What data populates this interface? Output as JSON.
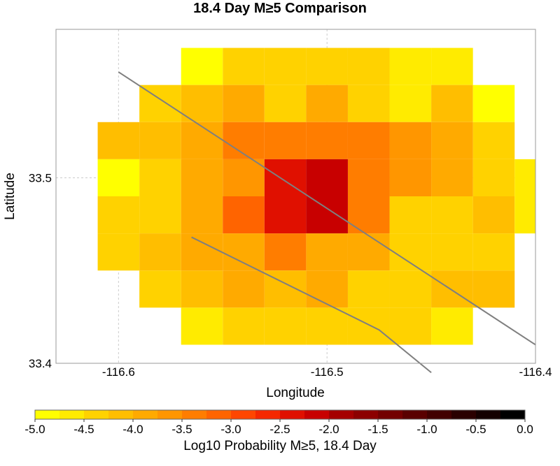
{
  "chart_data": {
    "type": "heatmap",
    "title": "18.4 Day M≥5 Comparison",
    "xlabel": "Longitude",
    "ylabel": "Latitude",
    "xlim": [
      -116.63,
      -116.4
    ],
    "ylim": [
      33.4,
      33.58
    ],
    "x_ticks": [
      -116.6,
      -116.5,
      -116.4
    ],
    "x_tick_labels": [
      "-116.6",
      "-116.5",
      "-116.4"
    ],
    "y_ticks": [
      33.4,
      33.5
    ],
    "y_tick_labels": [
      "33.4",
      "33.5"
    ],
    "grid": true,
    "cell_size_deg": 0.02,
    "column_centers_lon": [
      -116.6,
      -116.58,
      -116.56,
      -116.54,
      -116.52,
      -116.5,
      -116.48,
      -116.46,
      -116.44,
      -116.42,
      -116.4
    ],
    "row_centers_lat": [
      33.56,
      33.54,
      33.52,
      33.5,
      33.48,
      33.46,
      33.44,
      33.42
    ],
    "values_log10": [
      [
        null,
        null,
        -5.0,
        -4.4,
        -4.3,
        -4.3,
        -4.3,
        -4.7,
        -4.7,
        null,
        null
      ],
      [
        null,
        -4.3,
        -4.2,
        -4.0,
        -4.3,
        -4.0,
        -4.3,
        -4.7,
        -4.2,
        -4.9,
        null
      ],
      [
        -4.2,
        -4.2,
        -4.0,
        -3.5,
        -3.5,
        -3.5,
        -3.5,
        -3.7,
        -4.0,
        -4.3,
        null
      ],
      [
        -5.0,
        -4.4,
        -4.0,
        -3.7,
        -2.4,
        -2.2,
        -3.3,
        -3.7,
        -4.0,
        -4.4,
        -4.7
      ],
      [
        -4.5,
        -4.4,
        -4.0,
        -3.2,
        -2.4,
        -2.2,
        -3.3,
        -4.3,
        -4.4,
        -4.2,
        -4.7
      ],
      [
        -4.3,
        -4.2,
        -3.9,
        -3.9,
        -3.3,
        -3.8,
        -4.0,
        -4.3,
        -4.4,
        -4.5,
        null
      ],
      [
        null,
        -4.4,
        -4.2,
        -4.0,
        -4.2,
        -4.0,
        -4.3,
        -4.3,
        -4.1,
        -4.2,
        null
      ],
      [
        null,
        null,
        -4.7,
        -4.3,
        -4.3,
        -4.3,
        -4.3,
        -4.4,
        -4.7,
        null,
        null
      ]
    ],
    "overlay_lines": [
      [
        [
          -116.6,
          33.557
        ],
        [
          -116.4,
          33.41
        ]
      ],
      [
        [
          -116.565,
          33.468
        ],
        [
          -116.475,
          33.418
        ],
        [
          -116.45,
          33.395
        ]
      ]
    ],
    "colorbar": {
      "label": "Log10 Probability M≥5, 18.4 Day",
      "min": -5.0,
      "max": 0.0,
      "ticks": [
        -5.0,
        -4.5,
        -4.0,
        -3.5,
        -3.0,
        -2.5,
        -2.0,
        -1.5,
        -1.0,
        -0.5,
        0.0
      ],
      "tick_labels": [
        "-5.0",
        "-4.5",
        "-4.0",
        "-3.5",
        "-3.0",
        "-2.5",
        "-2.0",
        "-1.5",
        "-1.0",
        "-0.5",
        "0.0"
      ],
      "colors": [
        "#ffff00",
        "#ffeb00",
        "#ffd200",
        "#ffbe00",
        "#ffaa00",
        "#ff9600",
        "#ff7d00",
        "#ff6400",
        "#ff4600",
        "#f52800",
        "#e01000",
        "#c80000",
        "#a50000",
        "#8c0000",
        "#730000",
        "#5a0000",
        "#420000",
        "#2a0000",
        "#140000",
        "#000000"
      ]
    }
  }
}
